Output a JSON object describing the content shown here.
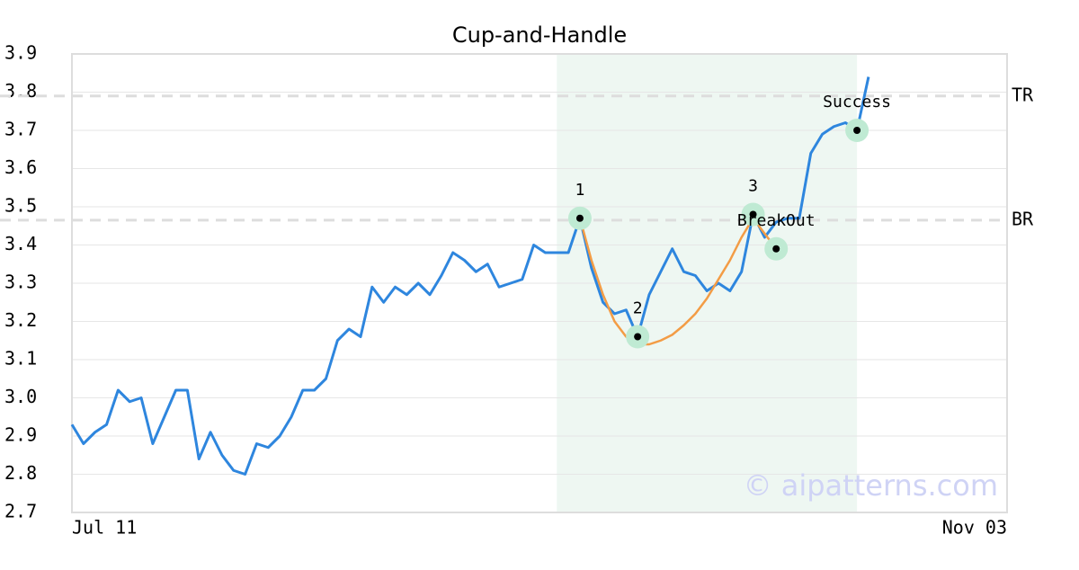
{
  "chart_data": {
    "type": "line",
    "title": "Cup-and-Handle",
    "categories": [
      "Jul 11",
      null,
      null,
      null,
      null,
      null,
      null,
      null,
      null,
      null,
      null,
      null,
      null,
      null,
      null,
      null,
      null,
      null,
      null,
      null,
      null,
      null,
      null,
      null,
      null,
      null,
      null,
      null,
      null,
      null,
      null,
      null,
      null,
      null,
      null,
      null,
      null,
      null,
      null,
      null,
      null,
      null,
      null,
      null,
      null,
      null,
      null,
      null,
      null,
      null,
      null,
      null,
      null,
      null,
      null,
      null,
      null,
      null,
      null,
      null,
      null,
      null,
      null,
      null,
      null,
      null,
      null,
      null,
      null,
      null,
      null,
      null,
      null,
      null,
      null,
      null,
      null,
      null,
      null,
      null,
      null,
      "Nov 03"
    ],
    "series": [
      {
        "color": "#2e86de",
        "values": [
          2.93,
          2.88,
          2.91,
          2.93,
          3.02,
          2.99,
          3.0,
          2.88,
          2.95,
          3.02,
          3.02,
          2.84,
          2.91,
          2.85,
          2.81,
          2.8,
          2.88,
          2.87,
          2.9,
          2.95,
          3.02,
          3.02,
          3.05,
          3.15,
          3.18,
          3.16,
          3.29,
          3.25,
          3.29,
          3.27,
          3.3,
          3.27,
          3.32,
          3.38,
          3.36,
          3.33,
          3.35,
          3.29,
          3.3,
          3.31,
          3.4,
          3.38,
          3.38,
          3.38,
          3.47,
          3.34,
          3.25,
          3.22,
          3.23,
          3.16,
          3.27,
          3.33,
          3.39,
          3.33,
          3.32,
          3.28,
          3.3,
          3.28,
          3.33,
          3.48,
          3.42,
          3.46,
          3.47,
          3.47,
          3.64,
          3.69,
          3.71,
          3.72,
          3.7,
          3.84,
          null,
          null,
          null,
          null,
          null,
          null,
          null,
          null,
          null,
          null,
          null,
          null
        ]
      },
      {
        "color": "#f39c45",
        "values": [
          null,
          null,
          null,
          null,
          null,
          null,
          null,
          null,
          null,
          null,
          null,
          null,
          null,
          null,
          null,
          null,
          null,
          null,
          null,
          null,
          null,
          null,
          null,
          null,
          null,
          null,
          null,
          null,
          null,
          null,
          null,
          null,
          null,
          null,
          null,
          null,
          null,
          null,
          null,
          null,
          null,
          null,
          null,
          null,
          3.47,
          3.36,
          3.27,
          3.2,
          3.16,
          3.14,
          3.14,
          3.15,
          3.165,
          3.19,
          3.22,
          3.26,
          3.31,
          3.36,
          3.42,
          3.47,
          3.43,
          3.39,
          null,
          null,
          null,
          null,
          null,
          null,
          null,
          null,
          null,
          null,
          null,
          null,
          null,
          null,
          null,
          null,
          null,
          null,
          null,
          null
        ]
      }
    ],
    "points": [
      {
        "label": "1",
        "x": 44,
        "value": 3.47
      },
      {
        "label": "2",
        "x": 49,
        "value": 3.16
      },
      {
        "label": "3",
        "x": 59,
        "value": 3.48
      },
      {
        "label": "BreakOut",
        "x": 61,
        "value": 3.39
      },
      {
        "label": "Success",
        "x": 68,
        "value": 3.7
      }
    ],
    "levels": [
      {
        "label": "TR",
        "value": 3.79
      },
      {
        "label": "BR",
        "value": 3.465
      }
    ],
    "highlight_range": [
      42,
      68
    ],
    "ylim": [
      2.7,
      3.9
    ],
    "yticks": [
      2.7,
      2.8,
      2.9,
      {
        "value": 3,
        "label": "3.0"
      },
      3.1,
      3.2,
      3.3,
      3.4,
      3.5,
      3.6,
      3.7,
      3.8,
      3.9
    ],
    "grid": true,
    "watermark": "© aipatterns.com"
  }
}
